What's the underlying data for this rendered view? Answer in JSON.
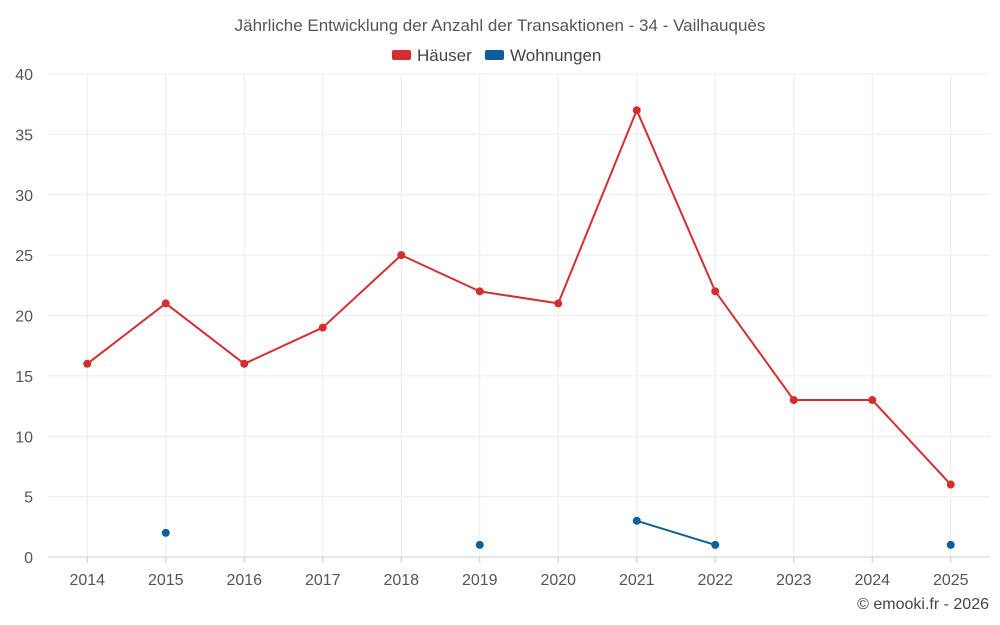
{
  "chart_data": {
    "type": "line",
    "title": "Jährliche Entwicklung der Anzahl der Transaktionen - 34 - Vailhauquès",
    "x": [
      "2014",
      "2015",
      "2016",
      "2017",
      "2018",
      "2019",
      "2020",
      "2021",
      "2022",
      "2023",
      "2024",
      "2025"
    ],
    "y_ticks": [
      "0",
      "5",
      "10",
      "15",
      "20",
      "25",
      "30",
      "35",
      "40"
    ],
    "ylim": [
      0,
      40
    ],
    "grid": true,
    "legend_position": "top-center",
    "series": [
      {
        "name": "Häuser",
        "color": "#d32f2f",
        "values": [
          16,
          21,
          16,
          19,
          25,
          22,
          21,
          37,
          22,
          13,
          13,
          6
        ]
      },
      {
        "name": "Wohnungen",
        "color": "#0d5f9a",
        "values": [
          null,
          2,
          null,
          null,
          null,
          1,
          null,
          3,
          1,
          null,
          null,
          1
        ]
      }
    ]
  },
  "credit": "© emooki.fr - 2026"
}
